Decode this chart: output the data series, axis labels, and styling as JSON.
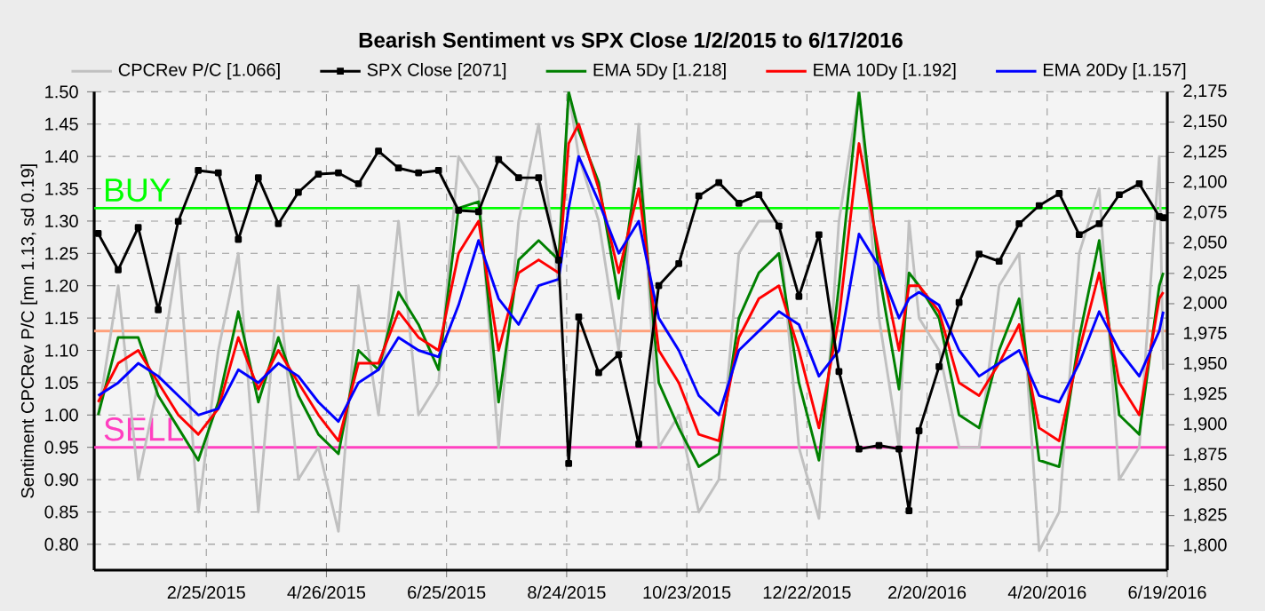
{
  "chart_data": {
    "type": "line",
    "title": "Bearish Sentiment vs SPX Close 1/2/2015 to 6/17/2016",
    "ylabel": "Sentiment CPCRev P/C [mn 1.13, sd 0.19]",
    "x": [
      "2015-01-02",
      "2015-01-12",
      "2015-01-22",
      "2015-02-01",
      "2015-02-11",
      "2015-02-21",
      "2015-03-03",
      "2015-03-13",
      "2015-03-23",
      "2015-04-02",
      "2015-04-12",
      "2015-04-22",
      "2015-05-02",
      "2015-05-12",
      "2015-05-22",
      "2015-06-01",
      "2015-06-11",
      "2015-06-21",
      "2015-07-01",
      "2015-07-11",
      "2015-07-21",
      "2015-07-31",
      "2015-08-10",
      "2015-08-20",
      "2015-08-25",
      "2015-08-30",
      "2015-09-09",
      "2015-09-19",
      "2015-09-29",
      "2015-10-09",
      "2015-10-19",
      "2015-10-29",
      "2015-11-08",
      "2015-11-18",
      "2015-11-28",
      "2015-12-08",
      "2015-12-18",
      "2015-12-28",
      "2016-01-07",
      "2016-01-17",
      "2016-01-27",
      "2016-02-06",
      "2016-02-11",
      "2016-02-16",
      "2016-02-26",
      "2016-03-07",
      "2016-03-17",
      "2016-03-27",
      "2016-04-06",
      "2016-04-16",
      "2016-04-26",
      "2016-05-06",
      "2016-05-16",
      "2016-05-26",
      "2016-06-05",
      "2016-06-15",
      "2016-06-17"
    ],
    "series": [
      {
        "name": "CPCRev P/C  [1.066]",
        "color": "#c0c0c0",
        "values": [
          1.0,
          1.2,
          0.9,
          1.05,
          1.25,
          0.85,
          1.1,
          1.25,
          0.85,
          1.2,
          0.9,
          0.95,
          0.82,
          1.2,
          1.0,
          1.3,
          1.0,
          1.05,
          1.4,
          1.35,
          0.95,
          1.3,
          1.45,
          1.2,
          1.5,
          1.4,
          1.3,
          1.1,
          1.45,
          0.95,
          1.0,
          0.85,
          0.9,
          1.25,
          1.3,
          1.3,
          0.95,
          0.84,
          1.3,
          1.5,
          1.15,
          0.95,
          1.3,
          1.15,
          1.1,
          0.95,
          0.95,
          1.2,
          1.25,
          0.79,
          0.85,
          1.25,
          1.35,
          0.9,
          0.95,
          1.4,
          1.07
        ]
      },
      {
        "name": "SPX Close [2071]",
        "color": "#000000",
        "axis": "y2",
        "marker": "square",
        "values": [
          2058,
          2028,
          2063,
          1995,
          2068,
          2110,
          2108,
          2053,
          2104,
          2066,
          2092,
          2107,
          2108,
          2099,
          2126,
          2112,
          2108,
          2110,
          2077,
          2076,
          2119,
          2104,
          2104,
          2036,
          1868,
          1989,
          1943,
          1958,
          1884,
          2015,
          2033,
          2089,
          2100,
          2083,
          2090,
          2064,
          2006,
          2057,
          1944,
          1880,
          1883,
          1880,
          1829,
          1895,
          1948,
          2001,
          2041,
          2035,
          2066,
          2081,
          2091,
          2057,
          2066,
          2090,
          2099,
          2072,
          2071
        ]
      },
      {
        "name": "EMA 5Dy  [1.218]",
        "color": "#008000",
        "values": [
          1.0,
          1.12,
          1.12,
          1.03,
          0.98,
          0.93,
          1.02,
          1.16,
          1.02,
          1.12,
          1.03,
          0.97,
          0.94,
          1.1,
          1.07,
          1.19,
          1.14,
          1.07,
          1.32,
          1.33,
          1.02,
          1.24,
          1.27,
          1.24,
          1.5,
          1.44,
          1.36,
          1.18,
          1.4,
          1.05,
          0.98,
          0.92,
          0.94,
          1.15,
          1.22,
          1.25,
          1.05,
          0.93,
          1.2,
          1.5,
          1.22,
          1.04,
          1.22,
          1.2,
          1.15,
          1.0,
          0.98,
          1.1,
          1.18,
          0.93,
          0.92,
          1.12,
          1.27,
          1.0,
          0.97,
          1.2,
          1.22
        ]
      },
      {
        "name": "EMA 10Dy  [1.192]",
        "color": "#ff0000",
        "values": [
          1.02,
          1.08,
          1.1,
          1.05,
          1.0,
          0.97,
          1.01,
          1.12,
          1.04,
          1.1,
          1.05,
          1.0,
          0.96,
          1.08,
          1.08,
          1.16,
          1.12,
          1.1,
          1.25,
          1.3,
          1.1,
          1.22,
          1.24,
          1.22,
          1.42,
          1.45,
          1.35,
          1.22,
          1.35,
          1.1,
          1.05,
          0.97,
          0.96,
          1.12,
          1.18,
          1.2,
          1.1,
          0.98,
          1.15,
          1.42,
          1.25,
          1.1,
          1.2,
          1.2,
          1.16,
          1.05,
          1.03,
          1.08,
          1.14,
          0.98,
          0.96,
          1.1,
          1.22,
          1.05,
          1.0,
          1.18,
          1.19
        ]
      },
      {
        "name": "EMA 20Dy  [1.157]",
        "color": "#0000ff",
        "values": [
          1.03,
          1.05,
          1.08,
          1.06,
          1.03,
          1.0,
          1.01,
          1.07,
          1.05,
          1.08,
          1.06,
          1.02,
          0.99,
          1.05,
          1.07,
          1.12,
          1.1,
          1.09,
          1.17,
          1.27,
          1.18,
          1.14,
          1.2,
          1.21,
          1.32,
          1.4,
          1.33,
          1.25,
          1.3,
          1.15,
          1.1,
          1.03,
          1.0,
          1.1,
          1.13,
          1.16,
          1.14,
          1.06,
          1.1,
          1.28,
          1.23,
          1.15,
          1.18,
          1.19,
          1.17,
          1.1,
          1.06,
          1.08,
          1.1,
          1.03,
          1.02,
          1.08,
          1.16,
          1.1,
          1.06,
          1.13,
          1.16
        ]
      }
    ],
    "xlim": [
      "2014-12-31",
      "2016-06-19"
    ],
    "xticks": [
      {
        "value": "2015-02-25",
        "label": "2/25/2015"
      },
      {
        "value": "2015-04-26",
        "label": "4/26/2015"
      },
      {
        "value": "2015-06-25",
        "label": "6/25/2015"
      },
      {
        "value": "2015-08-24",
        "label": "8/24/2015"
      },
      {
        "value": "2015-10-23",
        "label": "10/23/2015"
      },
      {
        "value": "2015-12-22",
        "label": "12/22/2015"
      },
      {
        "value": "2016-02-20",
        "label": "2/20/2016"
      },
      {
        "value": "2016-04-20",
        "label": "4/20/2016"
      },
      {
        "value": "2016-06-19",
        "label": "6/19/2016"
      }
    ],
    "ylim": [
      0.76,
      1.5
    ],
    "yticks": [
      {
        "value": 0.8,
        "label": "0.80"
      },
      0.85,
      {
        "value": 0.9,
        "label": "0.90"
      },
      0.95,
      {
        "value": 1.0,
        "label": "1.00"
      },
      1.05,
      {
        "value": 1.1,
        "label": "1.10"
      },
      1.15,
      {
        "value": 1.2,
        "label": "1.20"
      },
      1.25,
      {
        "value": 1.3,
        "label": "1.30"
      },
      1.35,
      {
        "value": 1.4,
        "label": "1.40"
      },
      1.45,
      {
        "value": 1.5,
        "label": "1.50"
      }
    ],
    "y2lim": [
      1780,
      2175
    ],
    "y2ticks": [
      {
        "value": 1800,
        "label": "1,800"
      },
      {
        "value": 1825,
        "label": "1,825"
      },
      {
        "value": 1850,
        "label": "1,850"
      },
      {
        "value": 1875,
        "label": "1,875"
      },
      {
        "value": 1900,
        "label": "1,900"
      },
      {
        "value": 1925,
        "label": "1,925"
      },
      {
        "value": 1950,
        "label": "1,950"
      },
      {
        "value": 1975,
        "label": "1,975"
      },
      {
        "value": 2000,
        "label": "2,000"
      },
      {
        "value": 2025,
        "label": "2,025"
      },
      {
        "value": 2050,
        "label": "2,050"
      },
      {
        "value": 2075,
        "label": "2,075"
      },
      {
        "value": 2100,
        "label": "2,100"
      },
      {
        "value": 2125,
        "label": "2,125"
      },
      {
        "value": 2150,
        "label": "2,150"
      },
      {
        "value": 2175,
        "label": "2,175"
      }
    ],
    "ref_lines": [
      {
        "axis": "y",
        "value": 1.32,
        "label": "BUY",
        "color": "#00ff00"
      },
      {
        "axis": "y",
        "value": 1.13,
        "color": "#ffa07a"
      },
      {
        "axis": "y",
        "value": 0.95,
        "label": "SELL",
        "color": "#ff40c0"
      }
    ],
    "grid": true,
    "legend": "top"
  }
}
